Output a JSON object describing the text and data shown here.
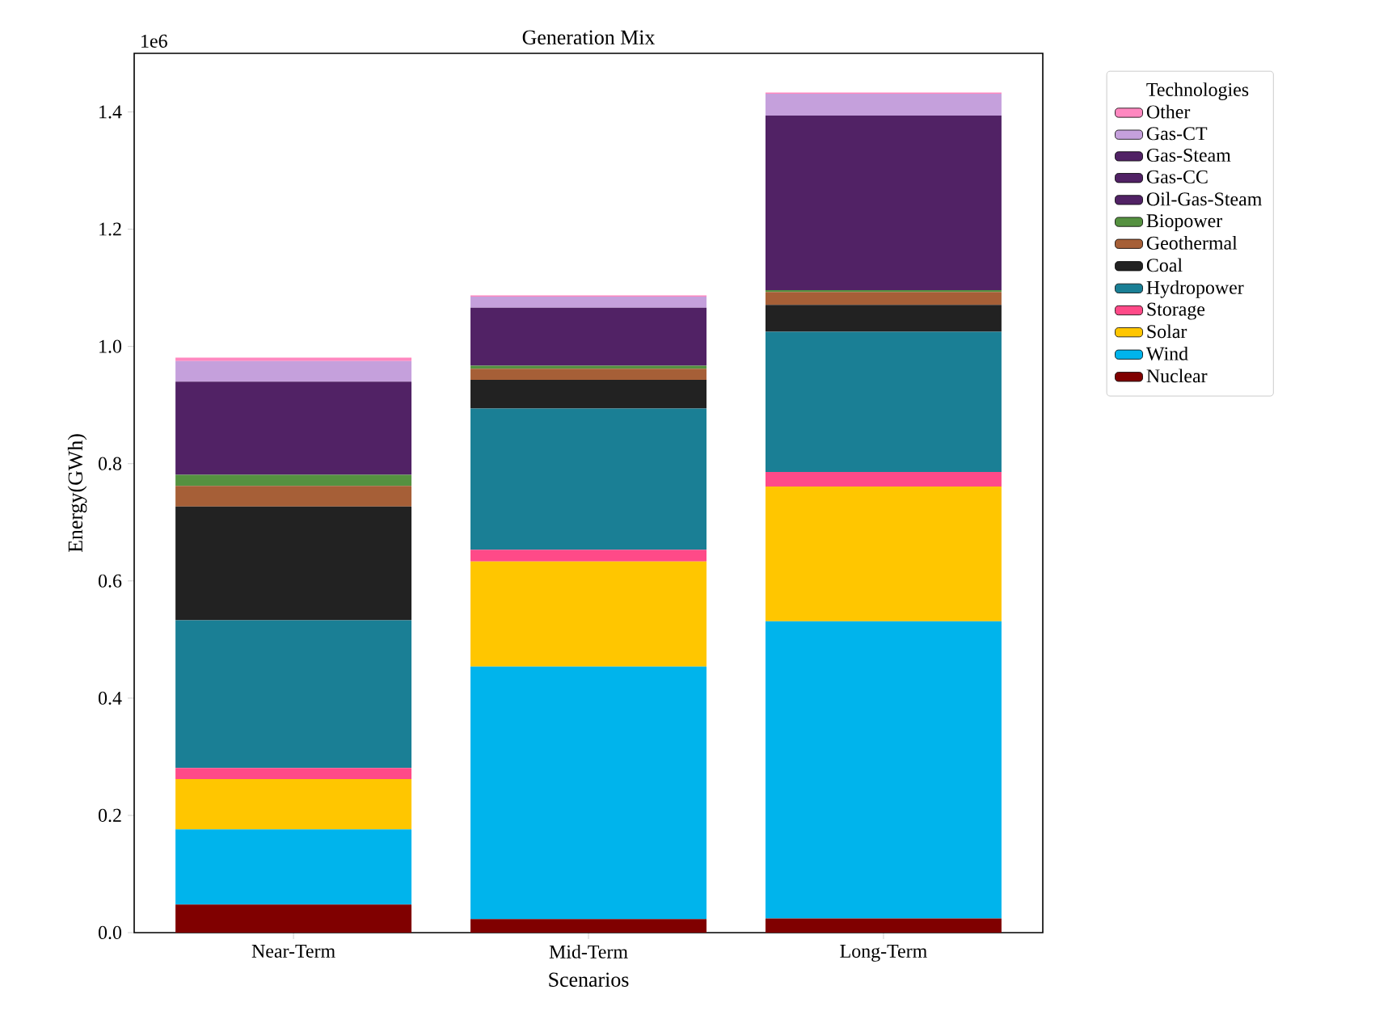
{
  "chart_data": {
    "type": "bar",
    "title": "Generation Mix",
    "xlabel": "Scenarios",
    "ylabel": "Energy(GWh)",
    "legend_title": "Technologies",
    "annotations": [
      "1e6"
    ],
    "categories": [
      "Near-Term",
      "Mid-Term",
      "Long-Term"
    ],
    "stacked": true,
    "legend": "right",
    "ylim": [
      0,
      1.5
    ],
    "yticks": [
      {
        "value": 0,
        "label": "0.0"
      },
      0.2,
      0.4,
      0.6,
      0.8,
      {
        "value": 1,
        "label": "1.0"
      },
      1.2,
      1.4
    ],
    "series": [
      {
        "name": "Nuclear",
        "color": "#800000",
        "values": [
          0.048,
          0.023,
          0.024
        ]
      },
      {
        "name": "Wind",
        "color": "#00b4ec",
        "values": [
          0.128,
          0.431,
          0.507
        ]
      },
      {
        "name": "Solar",
        "color": "#ffc600",
        "values": [
          0.086,
          0.179,
          0.23
        ]
      },
      {
        "name": "Storage",
        "color": "#ff4a88",
        "values": [
          0.019,
          0.02,
          0.025
        ]
      },
      {
        "name": "Hydropower",
        "color": "#1a7f95",
        "values": [
          0.252,
          0.241,
          0.239
        ]
      },
      {
        "name": "Coal",
        "color": "#222222",
        "values": [
          0.194,
          0.049,
          0.046
        ]
      },
      {
        "name": "Geothermal",
        "color": "#a65f37",
        "values": [
          0.035,
          0.019,
          0.022
        ]
      },
      {
        "name": "Biopower",
        "color": "#559140",
        "values": [
          0.019,
          0.005,
          0.003
        ]
      },
      {
        "name": "Oil-Gas-Steam",
        "color": "#512265",
        "values": [
          0,
          0,
          0
        ]
      },
      {
        "name": "Gas-CC",
        "color": "#512265",
        "values": [
          0.159,
          0.099,
          0.298
        ]
      },
      {
        "name": "Gas-Steam",
        "color": "#512265",
        "values": [
          0,
          0,
          0
        ]
      },
      {
        "name": "Gas-CT",
        "color": "#c5a0dc",
        "values": [
          0.035,
          0.019,
          0.037
        ]
      },
      {
        "name": "Other",
        "color": "#ff88c0",
        "values": [
          0.006,
          0.002,
          0.002
        ]
      }
    ]
  }
}
